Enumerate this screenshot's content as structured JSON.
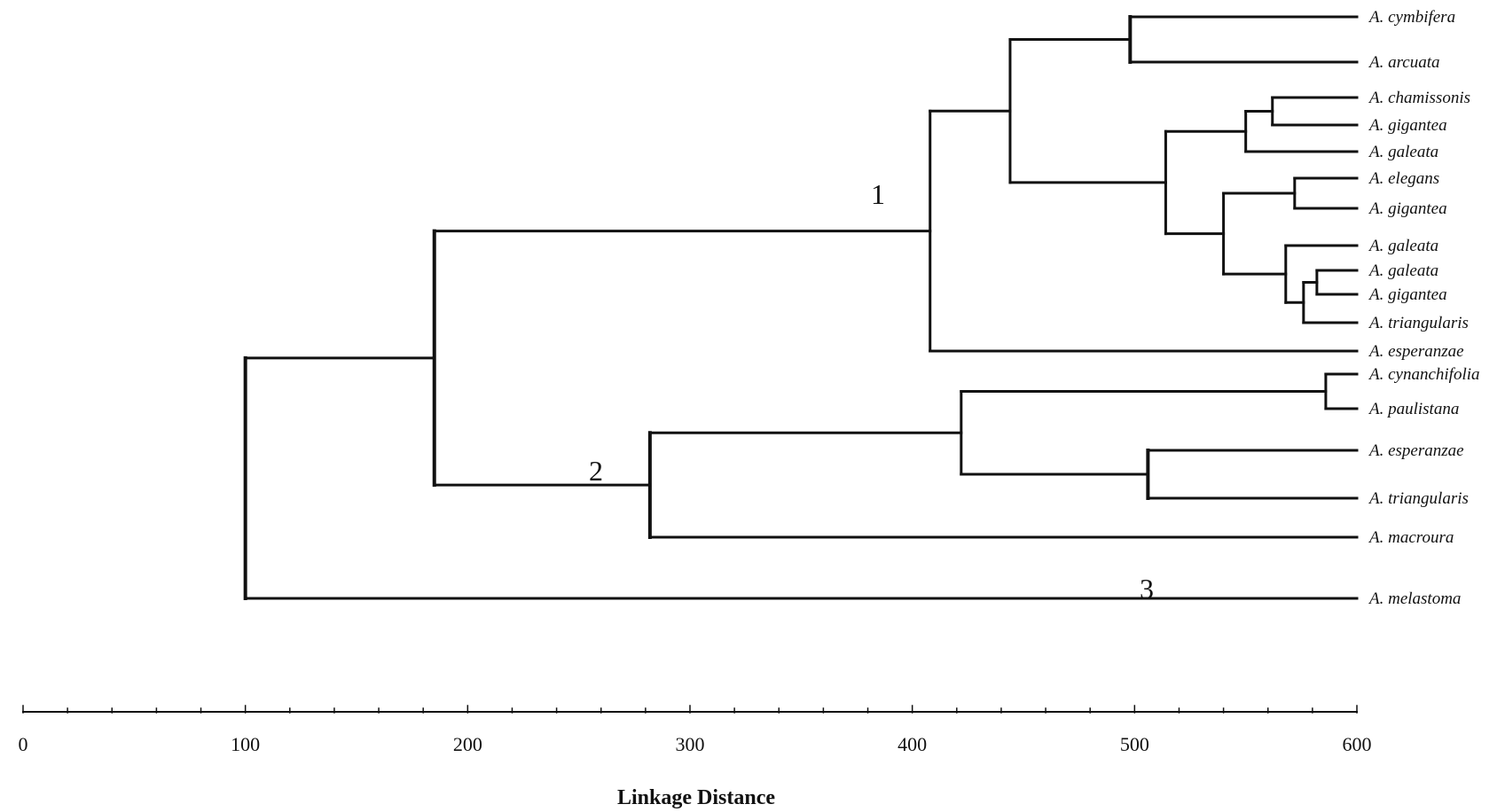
{
  "chart_data": {
    "type": "dendrogram",
    "xlabel": "Linkage Distance",
    "xlim": [
      0,
      600
    ],
    "x_ticks": [
      "0",
      "100",
      "200",
      "300",
      "400",
      "500",
      "600"
    ],
    "leaves": [
      "A. cymbifera",
      "A. arcuata",
      "A. chamissonis",
      "A. gigantea",
      "A. galeata",
      "A. elegans",
      "A. gigantea",
      "A. galeata",
      "A. galeata",
      "A. gigantea",
      "A. triangularis",
      "A. esperanzae",
      "A. cynanchifolia",
      "A. paulistana",
      "A. esperanzae",
      "A. triangularis",
      "A. macroura",
      "A. melastoma"
    ],
    "merges": [
      {
        "id": "n1",
        "children": [
          "L0",
          "L1"
        ],
        "distance": 498
      },
      {
        "id": "n2",
        "children": [
          "L2",
          "L3"
        ],
        "distance": 562
      },
      {
        "id": "n3",
        "children": [
          "n2",
          "L4"
        ],
        "distance": 550
      },
      {
        "id": "n4",
        "children": [
          "L5",
          "L6"
        ],
        "distance": 572
      },
      {
        "id": "n5",
        "children": [
          "L8",
          "L9"
        ],
        "distance": 582
      },
      {
        "id": "n6",
        "children": [
          "n5",
          "L10"
        ],
        "distance": 576
      },
      {
        "id": "n7",
        "children": [
          "L7",
          "n6"
        ],
        "distance": 568
      },
      {
        "id": "n8",
        "children": [
          "n4",
          "n7"
        ],
        "distance": 540
      },
      {
        "id": "n9",
        "children": [
          "n3",
          "n8"
        ],
        "distance": 514
      },
      {
        "id": "n10",
        "children": [
          "n1",
          "n9"
        ],
        "distance": 444
      },
      {
        "id": "n11",
        "children": [
          "n10",
          "L11"
        ],
        "distance": 408
      },
      {
        "id": "n12",
        "children": [
          "L12",
          "L13"
        ],
        "distance": 586
      },
      {
        "id": "n13",
        "children": [
          "L14",
          "L15"
        ],
        "distance": 506
      },
      {
        "id": "n14",
        "children": [
          "n12",
          "n13"
        ],
        "distance": 422
      },
      {
        "id": "n15",
        "children": [
          "n14",
          "L16"
        ],
        "distance": 282
      },
      {
        "id": "n16",
        "children": [
          "n11",
          "n15"
        ],
        "distance": 185
      },
      {
        "id": "n17",
        "children": [
          "n16",
          "L17"
        ],
        "distance": 100
      }
    ],
    "cluster_labels": [
      {
        "text": "1",
        "node": "n11"
      },
      {
        "text": "2",
        "node": "n15"
      },
      {
        "text": "3",
        "node": "n17"
      }
    ]
  }
}
